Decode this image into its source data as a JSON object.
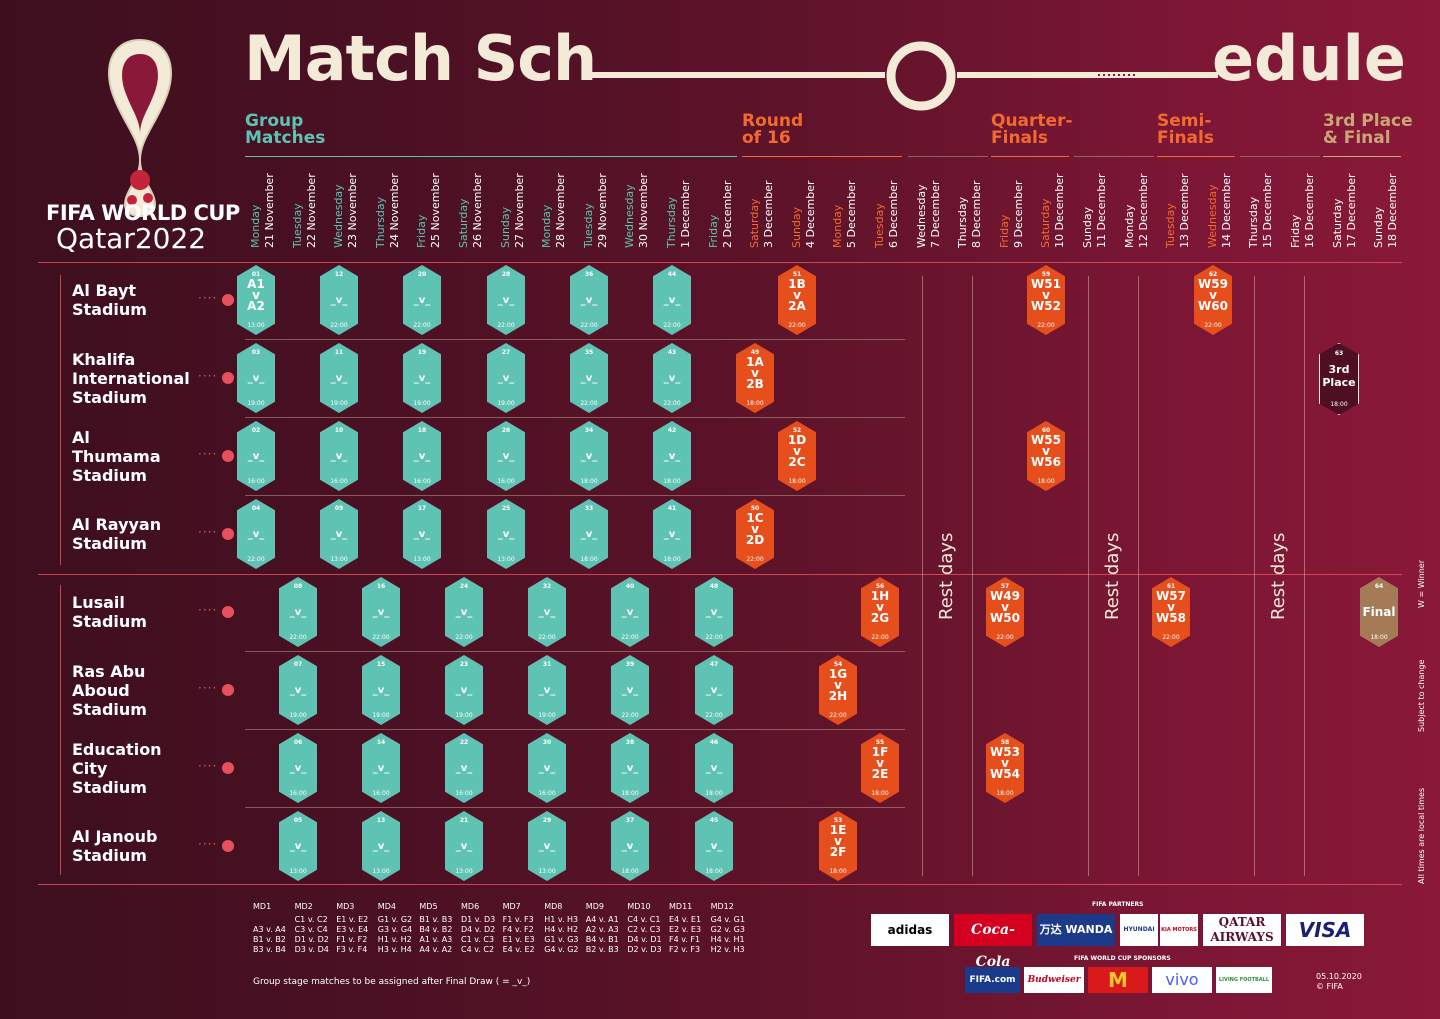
{
  "header": {
    "title_left": "Match Sch",
    "title_right": "edule",
    "logo_line1": "FIFA WORLD CUP",
    "logo_line2": "Qatar2022"
  },
  "colors": {
    "group": "#5fc3b3",
    "knockout": "#e64e1b",
    "third": "#4e0f22",
    "final": "#a57a56",
    "cream": "#f3ead7"
  },
  "stages": {
    "group": "Group\nMatches",
    "r16": "Round\nof 16",
    "qf": "Quarter-\nFinals",
    "sf": "Semi-\nFinals",
    "final": "3rd Place\n& Final"
  },
  "dates": [
    [
      "Monday",
      "21 November"
    ],
    [
      "Tuesday",
      "22 November"
    ],
    [
      "Wednesday",
      "23 November"
    ],
    [
      "Thursday",
      "24 November"
    ],
    [
      "Friday",
      "25 November"
    ],
    [
      "Saturday",
      "26 November"
    ],
    [
      "Sunday",
      "27 November"
    ],
    [
      "Monday",
      "28 November"
    ],
    [
      "Tuesday",
      "29 November"
    ],
    [
      "Wednesday",
      "30 November"
    ],
    [
      "Thursday",
      "1 December"
    ],
    [
      "Friday",
      "2 December"
    ],
    [
      "Saturday",
      "3 December"
    ],
    [
      "Sunday",
      "4 December"
    ],
    [
      "Monday",
      "5 December"
    ],
    [
      "Tuesday",
      "6 December"
    ],
    [
      "Wednesday",
      "7 December"
    ],
    [
      "Thursday",
      "8 December"
    ],
    [
      "Friday",
      "9 December"
    ],
    [
      "Saturday",
      "10 December"
    ],
    [
      "Sunday",
      "11 December"
    ],
    [
      "Monday",
      "12 December"
    ],
    [
      "Tuesday",
      "13 December"
    ],
    [
      "Wednesday",
      "14 December"
    ],
    [
      "Thursday",
      "15 December"
    ],
    [
      "Friday",
      "16 December"
    ],
    [
      "Saturday",
      "17 December"
    ],
    [
      "Sunday",
      "18 December"
    ]
  ],
  "stadiums": [
    "Al Bayt\nStadium",
    "Khalifa\nInternational\nStadium",
    "Al\nThumama\nStadium",
    "Al Rayyan\nStadium",
    "Lusail\nStadium",
    "Ras Abu\nAboud\nStadium",
    "Education\nCity\nStadium",
    "Al Janoub\nStadium"
  ],
  "rest_days": [
    "Rest days",
    "Rest days",
    "Rest days"
  ],
  "matches": [
    {
      "r": 0,
      "d": 0,
      "n": "01",
      "t": "A1\nv\nA2",
      "tm": "13:00",
      "c": "g"
    },
    {
      "r": 0,
      "d": 2,
      "n": "12",
      "t": "_v_",
      "tm": "22:00",
      "c": "g"
    },
    {
      "r": 0,
      "d": 4,
      "n": "20",
      "t": "_v_",
      "tm": "22:00",
      "c": "g"
    },
    {
      "r": 0,
      "d": 6,
      "n": "28",
      "t": "_v_",
      "tm": "22:00",
      "c": "g"
    },
    {
      "r": 0,
      "d": 8,
      "n": "36",
      "t": "_v_",
      "tm": "22:00",
      "c": "g"
    },
    {
      "r": 0,
      "d": 10,
      "n": "44",
      "t": "_v_",
      "tm": "22:00",
      "c": "g"
    },
    {
      "r": 0,
      "d": 13,
      "n": "51",
      "t": "1B\nv\n2A",
      "tm": "22:00",
      "c": "k"
    },
    {
      "r": 0,
      "d": 19,
      "n": "59",
      "t": "W51\nv\nW52",
      "tm": "22:00",
      "c": "k"
    },
    {
      "r": 0,
      "d": 23,
      "n": "62",
      "t": "W59\nv\nW60",
      "tm": "22:00",
      "c": "k"
    },
    {
      "r": 1,
      "d": 0,
      "n": "03",
      "t": "_v_",
      "tm": "19:00",
      "c": "g"
    },
    {
      "r": 1,
      "d": 2,
      "n": "11",
      "t": "_v_",
      "tm": "19:00",
      "c": "g"
    },
    {
      "r": 1,
      "d": 4,
      "n": "19",
      "t": "_v_",
      "tm": "19:00",
      "c": "g"
    },
    {
      "r": 1,
      "d": 6,
      "n": "27",
      "t": "_v_",
      "tm": "19:00",
      "c": "g"
    },
    {
      "r": 1,
      "d": 8,
      "n": "35",
      "t": "_v_",
      "tm": "22:00",
      "c": "g"
    },
    {
      "r": 1,
      "d": 10,
      "n": "43",
      "t": "_v_",
      "tm": "22:00",
      "c": "g"
    },
    {
      "r": 1,
      "d": 12,
      "n": "49",
      "t": "1A\nv\n2B",
      "tm": "18:00",
      "c": "k"
    },
    {
      "r": 1,
      "d": 26,
      "n": "63",
      "t": "3rd\nPlace",
      "tm": "18:00",
      "c": "o"
    },
    {
      "r": 2,
      "d": 0,
      "n": "02",
      "t": "_v_",
      "tm": "16:00",
      "c": "g"
    },
    {
      "r": 2,
      "d": 2,
      "n": "10",
      "t": "_v_",
      "tm": "16:00",
      "c": "g"
    },
    {
      "r": 2,
      "d": 4,
      "n": "18",
      "t": "_v_",
      "tm": "16:00",
      "c": "g"
    },
    {
      "r": 2,
      "d": 6,
      "n": "26",
      "t": "_v_",
      "tm": "16:00",
      "c": "g"
    },
    {
      "r": 2,
      "d": 8,
      "n": "34",
      "t": "_v_",
      "tm": "18:00",
      "c": "g"
    },
    {
      "r": 2,
      "d": 10,
      "n": "42",
      "t": "_v_",
      "tm": "18:00",
      "c": "g"
    },
    {
      "r": 2,
      "d": 13,
      "n": "52",
      "t": "1D\nv\n2C",
      "tm": "18:00",
      "c": "k"
    },
    {
      "r": 2,
      "d": 19,
      "n": "60",
      "t": "W55\nv\nW56",
      "tm": "18:00",
      "c": "k"
    },
    {
      "r": 3,
      "d": 0,
      "n": "04",
      "t": "_v_",
      "tm": "22:00",
      "c": "g"
    },
    {
      "r": 3,
      "d": 2,
      "n": "09",
      "t": "_v_",
      "tm": "13:00",
      "c": "g"
    },
    {
      "r": 3,
      "d": 4,
      "n": "17",
      "t": "_v_",
      "tm": "13:00",
      "c": "g"
    },
    {
      "r": 3,
      "d": 6,
      "n": "25",
      "t": "_v_",
      "tm": "13:00",
      "c": "g"
    },
    {
      "r": 3,
      "d": 8,
      "n": "33",
      "t": "_v_",
      "tm": "18:00",
      "c": "g"
    },
    {
      "r": 3,
      "d": 10,
      "n": "41",
      "t": "_v_",
      "tm": "18:00",
      "c": "g"
    },
    {
      "r": 3,
      "d": 12,
      "n": "50",
      "t": "1C\nv\n2D",
      "tm": "22:00",
      "c": "k"
    },
    {
      "r": 4,
      "d": 1,
      "n": "08",
      "t": "_v_",
      "tm": "22:00",
      "c": "g"
    },
    {
      "r": 4,
      "d": 3,
      "n": "16",
      "t": "_v_",
      "tm": "22:00",
      "c": "g"
    },
    {
      "r": 4,
      "d": 5,
      "n": "24",
      "t": "_v_",
      "tm": "22:00",
      "c": "g"
    },
    {
      "r": 4,
      "d": 7,
      "n": "32",
      "t": "_v_",
      "tm": "22:00",
      "c": "g"
    },
    {
      "r": 4,
      "d": 9,
      "n": "40",
      "t": "_v_",
      "tm": "22:00",
      "c": "g"
    },
    {
      "r": 4,
      "d": 11,
      "n": "48",
      "t": "_v_",
      "tm": "22:00",
      "c": "g"
    },
    {
      "r": 4,
      "d": 15,
      "n": "56",
      "t": "1H\nv\n2G",
      "tm": "22:00",
      "c": "k"
    },
    {
      "r": 4,
      "d": 18,
      "n": "57",
      "t": "W49\nv\nW50",
      "tm": "22:00",
      "c": "k"
    },
    {
      "r": 4,
      "d": 22,
      "n": "61",
      "t": "W57\nv\nW58",
      "tm": "22:00",
      "c": "k"
    },
    {
      "r": 4,
      "d": 27,
      "n": "64",
      "t": "Final",
      "tm": "18:00",
      "c": "f"
    },
    {
      "r": 5,
      "d": 1,
      "n": "07",
      "t": "_v_",
      "tm": "19:00",
      "c": "g"
    },
    {
      "r": 5,
      "d": 3,
      "n": "15",
      "t": "_v_",
      "tm": "19:00",
      "c": "g"
    },
    {
      "r": 5,
      "d": 5,
      "n": "23",
      "t": "_v_",
      "tm": "19:00",
      "c": "g"
    },
    {
      "r": 5,
      "d": 7,
      "n": "31",
      "t": "_v_",
      "tm": "19:00",
      "c": "g"
    },
    {
      "r": 5,
      "d": 9,
      "n": "39",
      "t": "_v_",
      "tm": "22:00",
      "c": "g"
    },
    {
      "r": 5,
      "d": 11,
      "n": "47",
      "t": "_v_",
      "tm": "22:00",
      "c": "g"
    },
    {
      "r": 5,
      "d": 14,
      "n": "54",
      "t": "1G\nv\n2H",
      "tm": "22:00",
      "c": "k"
    },
    {
      "r": 6,
      "d": 1,
      "n": "06",
      "t": "_v_",
      "tm": "16:00",
      "c": "g"
    },
    {
      "r": 6,
      "d": 3,
      "n": "14",
      "t": "_v_",
      "tm": "16:00",
      "c": "g"
    },
    {
      "r": 6,
      "d": 5,
      "n": "22",
      "t": "_v_",
      "tm": "16:00",
      "c": "g"
    },
    {
      "r": 6,
      "d": 7,
      "n": "30",
      "t": "_v_",
      "tm": "16:00",
      "c": "g"
    },
    {
      "r": 6,
      "d": 9,
      "n": "38",
      "t": "_v_",
      "tm": "18:00",
      "c": "g"
    },
    {
      "r": 6,
      "d": 11,
      "n": "46",
      "t": "_v_",
      "tm": "18:00",
      "c": "g"
    },
    {
      "r": 6,
      "d": 15,
      "n": "55",
      "t": "1F\nv\n2E",
      "tm": "18:00",
      "c": "k"
    },
    {
      "r": 6,
      "d": 18,
      "n": "58",
      "t": "W53\nv\nW54",
      "tm": "18:00",
      "c": "k"
    },
    {
      "r": 7,
      "d": 1,
      "n": "05",
      "t": "_v_",
      "tm": "13:00",
      "c": "g"
    },
    {
      "r": 7,
      "d": 3,
      "n": "13",
      "t": "_v_",
      "tm": "13:00",
      "c": "g"
    },
    {
      "r": 7,
      "d": 5,
      "n": "21",
      "t": "_v_",
      "tm": "13:00",
      "c": "g"
    },
    {
      "r": 7,
      "d": 7,
      "n": "29",
      "t": "_v_",
      "tm": "13:00",
      "c": "g"
    },
    {
      "r": 7,
      "d": 9,
      "n": "37",
      "t": "_v_",
      "tm": "18:00",
      "c": "g"
    },
    {
      "r": 7,
      "d": 11,
      "n": "45",
      "t": "_v_",
      "tm": "18:00",
      "c": "g"
    },
    {
      "r": 7,
      "d": 14,
      "n": "53",
      "t": "1E\nv\n2F",
      "tm": "18:00",
      "c": "k"
    }
  ],
  "matchdays": [
    {
      "label": "MD1",
      "lines": "\nA3 v. A4\nB1 v. B2\nB3 v. B4"
    },
    {
      "label": "MD2",
      "lines": "C1 v. C2\nC3 v. C4\nD1 v. D2\nD3 v. D4"
    },
    {
      "label": "MD3",
      "lines": "E1 v. E2\nE3 v. E4\nF1 v. F2\nF3 v. F4"
    },
    {
      "label": "MD4",
      "lines": "G1 v. G2\nG3 v. G4\nH1 v. H2\nH3 v. H4"
    },
    {
      "label": "MD5",
      "lines": "B1 v. B3\nB4 v. B2\nA1 v. A3\nA4 v. A2"
    },
    {
      "label": "MD6",
      "lines": "D1 v. D3\nD4 v. D2\nC1 v. C3\nC4 v. C2"
    },
    {
      "label": "MD7",
      "lines": "F1 v. F3\nF4 v. F2\nE1 v. E3\nE4 v. E2"
    },
    {
      "label": "MD8",
      "lines": "H1 v. H3\nH4 v. H2\nG1 v. G3\nG4 v. G2"
    },
    {
      "label": "MD9",
      "lines": "A4 v. A1\nA2 v. A3\nB4 v. B1\nB2 v. B3"
    },
    {
      "label": "MD10",
      "lines": "C4 v. C1\nC2 v. C3\nD4 v. D1\nD2 v. D3"
    },
    {
      "label": "MD11",
      "lines": "E4 v. E1\nE2 v. E3\nF4 v. F1\nF2 v. F3"
    },
    {
      "label": "MD12",
      "lines": "G4 v. G1\nG2 v. G3\nH4 v. H1\nH2 v. H3"
    }
  ],
  "footer": {
    "note": "Group stage matches to be assigned after Final Draw ( = _v_)",
    "partners_label": "FIFA PARTNERS",
    "sponsors_label": "FIFA WORLD CUP SPONSORS",
    "date_code": "05.10.2020\n© FIFA",
    "side_winner": "W = Winner",
    "side_change": "Subject to change",
    "side_times": "All times are local times"
  },
  "partners": [
    "adidas",
    "Coca-Cola",
    "万达 WANDA",
    "HYUNDAI",
    "KIA MOTORS",
    "QATAR AIRWAYS",
    "VISA"
  ],
  "sponsors": [
    "FIFA.com",
    "Budweiser",
    "M",
    "vivo",
    "LIVING FOOTBALL"
  ]
}
